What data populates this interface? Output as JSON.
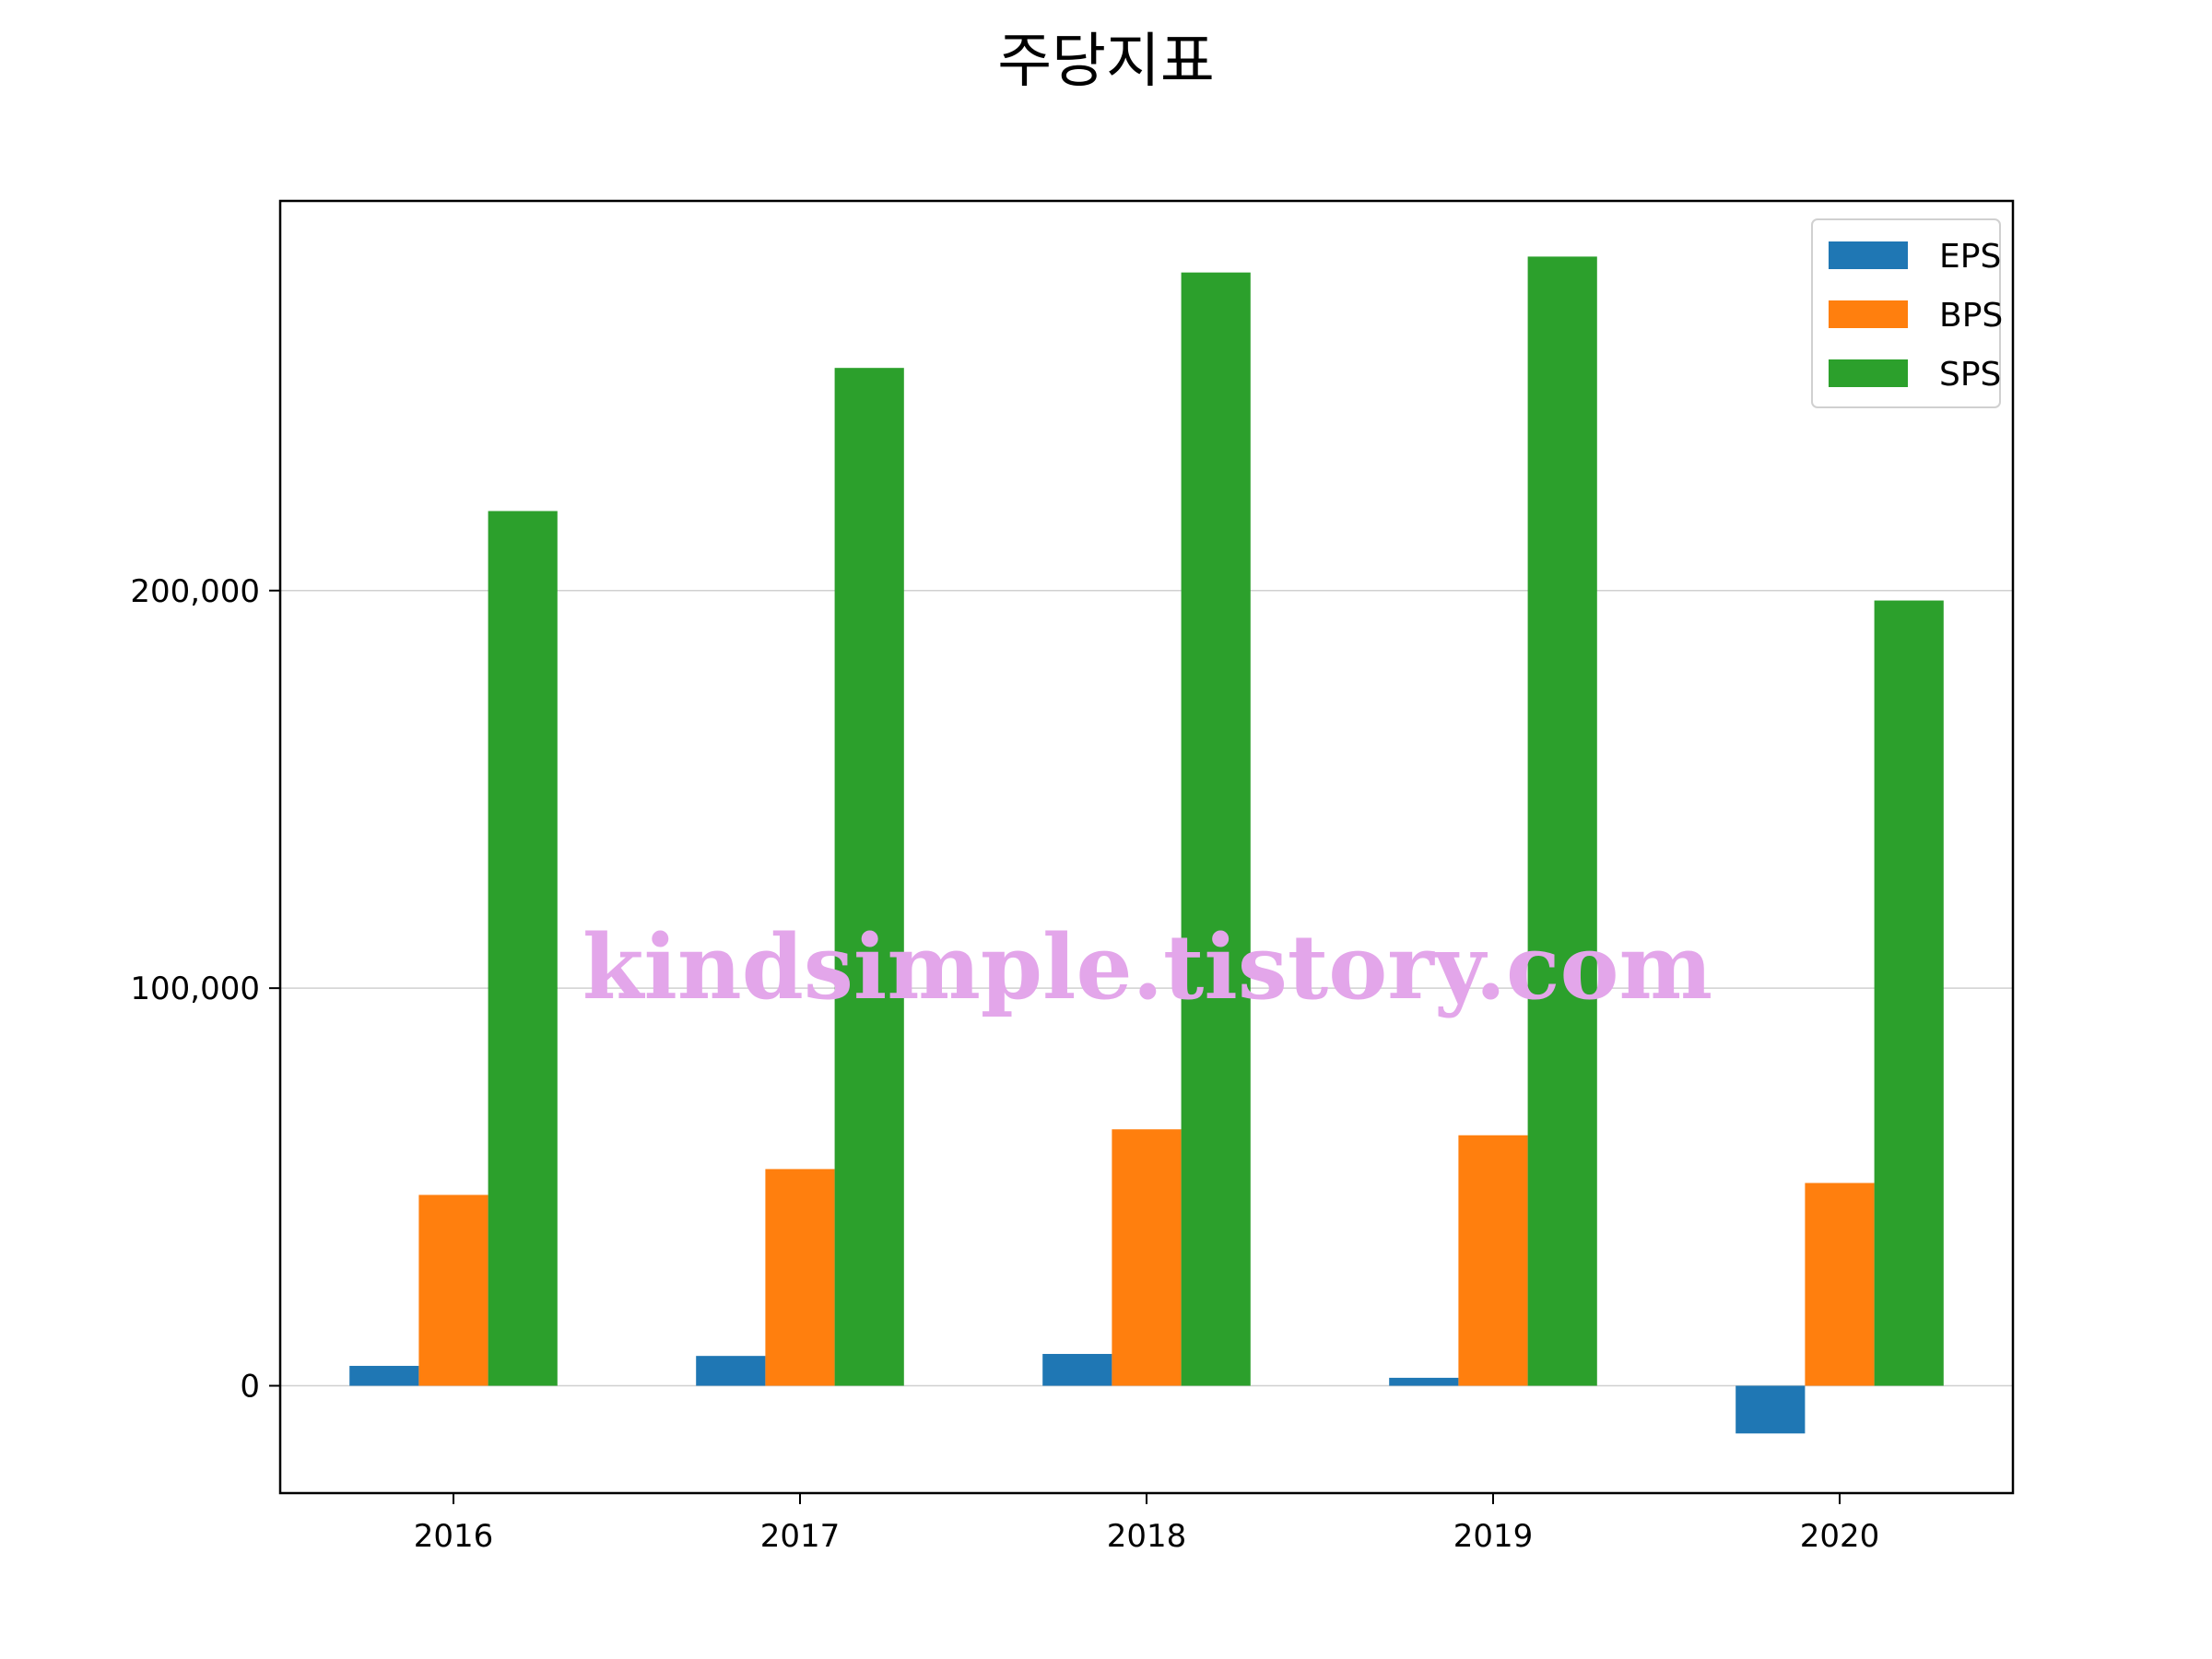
{
  "chart_data": {
    "type": "bar",
    "title": "주당지표",
    "xlabel": "",
    "ylabel": "",
    "categories": [
      "2016",
      "2017",
      "2018",
      "2019",
      "2020"
    ],
    "series": [
      {
        "name": "EPS",
        "color": "#1f77b4",
        "values": [
          5000,
          7500,
          8000,
          2000,
          -12000
        ]
      },
      {
        "name": "BPS",
        "color": "#ff7f0e",
        "values": [
          48000,
          54500,
          64500,
          63000,
          51000
        ]
      },
      {
        "name": "SPS",
        "color": "#2ca02c",
        "values": [
          220000,
          256000,
          280000,
          284000,
          197500
        ]
      }
    ],
    "ylim": [
      -27000,
      298000
    ],
    "yticks": [
      0,
      100000,
      200000
    ],
    "ytick_labels": [
      "0",
      "100,000",
      "200,000"
    ],
    "grid": {
      "y": true,
      "x": false,
      "color": "#d0d0d0"
    },
    "legend": {
      "position": "top-right"
    },
    "watermark": "kindsimple.tistory.com"
  }
}
